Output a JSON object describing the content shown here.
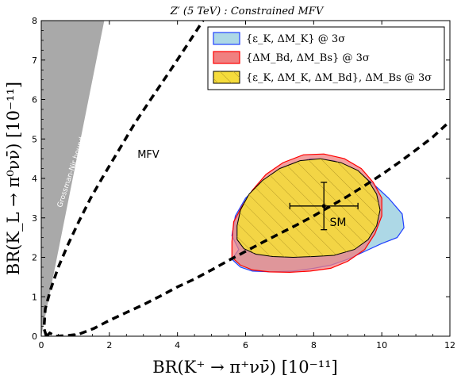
{
  "chart_data": {
    "type": "area",
    "title": "Z′ (5 TeV)  :  Constrained MFV",
    "xlabel": "BR(K⁺ → π⁺νν̄) [10⁻¹¹]",
    "ylabel": "BR(K_L → π⁰νν̄) [10⁻¹¹]",
    "xlim": [
      0,
      12
    ],
    "ylim": [
      0,
      8
    ],
    "x_ticks": [
      "0",
      "2",
      "4",
      "6",
      "8",
      "10",
      "12"
    ],
    "y_ticks": [
      "0",
      "1",
      "2",
      "3",
      "4",
      "5",
      "6",
      "7",
      "8"
    ],
    "grid": false,
    "legend_position": "top-right",
    "colors": {
      "blue_fill": "#add8e6",
      "blue_edge": "#1f3fff",
      "red_fill": "#f08080",
      "red_edge": "#ff0000",
      "yellow_fill": "#f5dc3c",
      "yellow_edge": "#000000",
      "gn_band": "#a9a9a9"
    },
    "legend": [
      {
        "name": "{ε_K, ΔM_K} @ 3σ",
        "color": "blue"
      },
      {
        "name": "{ΔM_Bd, ΔM_Bs} @ 3σ",
        "color": "red"
      },
      {
        "name": "{ε_K, ΔM_K, ΔM_Bd}, ΔM_Bs @ 3σ",
        "color": "yellow"
      }
    ],
    "regions": {
      "blue": [
        [
          5.8,
          2.2
        ],
        [
          5.6,
          2.55
        ],
        [
          5.7,
          3.05
        ],
        [
          6.0,
          3.5
        ],
        [
          6.5,
          3.9
        ],
        [
          7.2,
          4.3
        ],
        [
          7.9,
          4.5
        ],
        [
          8.6,
          4.45
        ],
        [
          9.2,
          4.2
        ],
        [
          9.7,
          3.9
        ],
        [
          10.2,
          3.5
        ],
        [
          10.6,
          3.1
        ],
        [
          10.65,
          2.75
        ],
        [
          10.45,
          2.5
        ],
        [
          10.0,
          2.35
        ],
        [
          9.5,
          2.15
        ],
        [
          9.0,
          1.95
        ],
        [
          8.5,
          1.8
        ],
        [
          8.0,
          1.72
        ],
        [
          7.4,
          1.65
        ],
        [
          6.8,
          1.63
        ],
        [
          6.2,
          1.65
        ],
        [
          5.85,
          1.75
        ],
        [
          5.6,
          1.95
        ]
      ],
      "red": [
        [
          5.6,
          2.0
        ],
        [
          5.6,
          2.4
        ],
        [
          5.65,
          2.9
        ],
        [
          5.9,
          3.3
        ],
        [
          6.2,
          3.7
        ],
        [
          6.6,
          4.1
        ],
        [
          7.1,
          4.4
        ],
        [
          7.7,
          4.6
        ],
        [
          8.3,
          4.62
        ],
        [
          8.9,
          4.5
        ],
        [
          9.4,
          4.25
        ],
        [
          9.75,
          3.9
        ],
        [
          10.0,
          3.5
        ],
        [
          10.0,
          3.05
        ],
        [
          9.8,
          2.6
        ],
        [
          9.5,
          2.2
        ],
        [
          9.0,
          1.9
        ],
        [
          8.5,
          1.72
        ],
        [
          7.9,
          1.65
        ],
        [
          7.3,
          1.62
        ],
        [
          6.7,
          1.63
        ],
        [
          6.2,
          1.68
        ],
        [
          5.85,
          1.8
        ]
      ],
      "yellow": [
        [
          5.75,
          2.45
        ],
        [
          5.75,
          2.8
        ],
        [
          5.85,
          3.2
        ],
        [
          6.1,
          3.6
        ],
        [
          6.5,
          3.95
        ],
        [
          7.0,
          4.25
        ],
        [
          7.6,
          4.45
        ],
        [
          8.2,
          4.5
        ],
        [
          8.8,
          4.4
        ],
        [
          9.3,
          4.2
        ],
        [
          9.6,
          3.95
        ],
        [
          9.85,
          3.6
        ],
        [
          9.95,
          3.2
        ],
        [
          9.85,
          2.8
        ],
        [
          9.6,
          2.45
        ],
        [
          9.2,
          2.2
        ],
        [
          8.6,
          2.05
        ],
        [
          8.0,
          2.02
        ],
        [
          7.4,
          2.0
        ],
        [
          6.8,
          2.02
        ],
        [
          6.3,
          2.08
        ],
        [
          5.95,
          2.22
        ]
      ]
    },
    "mfv_curve": [
      [
        0.15,
        0.0
      ],
      [
        0.25,
        0.08
      ],
      [
        0.42,
        0.0
      ],
      [
        0.8,
        0.02
      ],
      [
        1.1,
        0.05
      ],
      [
        1.55,
        0.2
      ],
      [
        2.0,
        0.4
      ],
      [
        2.5,
        0.6
      ],
      [
        3,
        0.8
      ],
      [
        3.5,
        1.02
      ],
      [
        4,
        1.25
      ],
      [
        4.5,
        1.45
      ],
      [
        5,
        1.68
      ],
      [
        5.5,
        1.92
      ],
      [
        6,
        2.15
      ],
      [
        6.5,
        2.38
      ],
      [
        7,
        2.6
      ],
      [
        7.5,
        2.82
      ],
      [
        8,
        3.05
      ],
      [
        8.5,
        3.3
      ],
      [
        9,
        3.55
      ],
      [
        9.5,
        3.82
      ],
      [
        10,
        4.1
      ],
      [
        10.5,
        4.4
      ],
      [
        11,
        4.72
      ],
      [
        11.5,
        5.05
      ],
      [
        12,
        5.45
      ]
    ],
    "mfv_curve_upper": [
      [
        0.15,
        0.0
      ],
      [
        0.08,
        0.2
      ],
      [
        0.12,
        0.7
      ],
      [
        0.28,
        1.2
      ],
      [
        0.5,
        1.75
      ],
      [
        0.8,
        2.35
      ],
      [
        1.1,
        2.9
      ],
      [
        1.45,
        3.5
      ],
      [
        1.85,
        4.1
      ],
      [
        2.3,
        4.75
      ],
      [
        2.75,
        5.4
      ],
      [
        3.25,
        6.05
      ],
      [
        3.8,
        6.75
      ],
      [
        4.3,
        7.4
      ],
      [
        4.75,
        8.0
      ]
    ],
    "gn_bound": [
      [
        0,
        0
      ],
      [
        0,
        8
      ],
      [
        1.85,
        8
      ]
    ],
    "sm_point": {
      "x": 8.3,
      "y": 3.3,
      "xerr": 1.0,
      "yerr": 0.6
    },
    "annotations": {
      "mfv_label": "MFV",
      "sm_label": "SM",
      "gn_label": "Grossman-Nir bound"
    }
  }
}
